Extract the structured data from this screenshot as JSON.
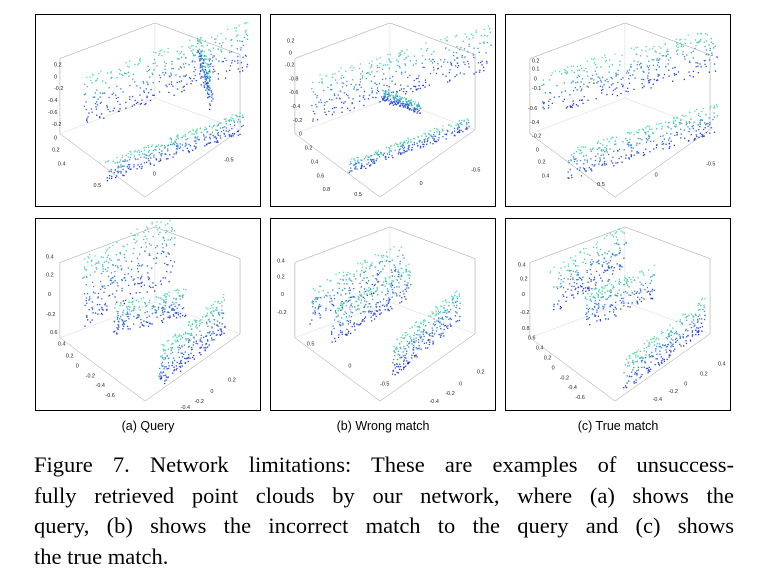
{
  "figure": {
    "subcaptions": [
      "(a) Query",
      "(b) Wrong match",
      "(c) True match"
    ],
    "caption_lines": [
      "Figure 7. Network limitations: These are examples of unsuccess-",
      "fully retrieved point clouds by our network, where (a) shows the",
      "query, (b) shows the incorrect match to the query and (c) shows",
      "the true match."
    ]
  },
  "colors": {
    "high": "#4ee6a0",
    "mid": "#2f7fd8",
    "low": "#1f2fd8",
    "axis": "#999999"
  },
  "panels": [
    {
      "name": "query-top",
      "ticks": [
        "0.2",
        "0",
        "-0.2",
        "-0.4",
        "-0.6",
        "-0.2",
        "0",
        "0.2",
        "0.4",
        "0.5",
        "0",
        "-0.5"
      ]
    },
    {
      "name": "wrong-top",
      "ticks": [
        "0.2",
        "0",
        "-0.2",
        "-0.8",
        "-0.6",
        "-0.4",
        "-0.2",
        "0",
        "0.2",
        "0.4",
        "0.6",
        "0.8",
        "0.5",
        "0",
        "-0.5"
      ]
    },
    {
      "name": "true-top",
      "ticks": [
        "0.2",
        "0.1",
        "0",
        "-0.1",
        "-0.6",
        "-0.4",
        "-0.2",
        "0",
        "0.2",
        "0.4",
        "0.5",
        "0",
        "-0.5"
      ]
    },
    {
      "name": "query-bottom",
      "ticks": [
        "0.4",
        "0.2",
        "0",
        "-0.2",
        "0.6",
        "0.4",
        "0.2",
        "0",
        "-0.2",
        "-0.4",
        "-0.6",
        "0.2",
        "0",
        "-0.2",
        "-0.4"
      ]
    },
    {
      "name": "wrong-bottom",
      "ticks": [
        "0.4",
        "0.2",
        "0",
        "-0.2",
        "0.5",
        "0",
        "-0.5",
        "0.2",
        "0",
        "-0.2",
        "-0.4"
      ]
    },
    {
      "name": "true-bottom",
      "ticks": [
        "0.4",
        "0.2",
        "0",
        "-0.2",
        "0.8",
        "0.6",
        "0.4",
        "0.2",
        "0",
        "-0.2",
        "-0.4",
        "-0.6",
        "0.4",
        "0.2",
        "0",
        "-0.2",
        "-0.4"
      ]
    }
  ]
}
